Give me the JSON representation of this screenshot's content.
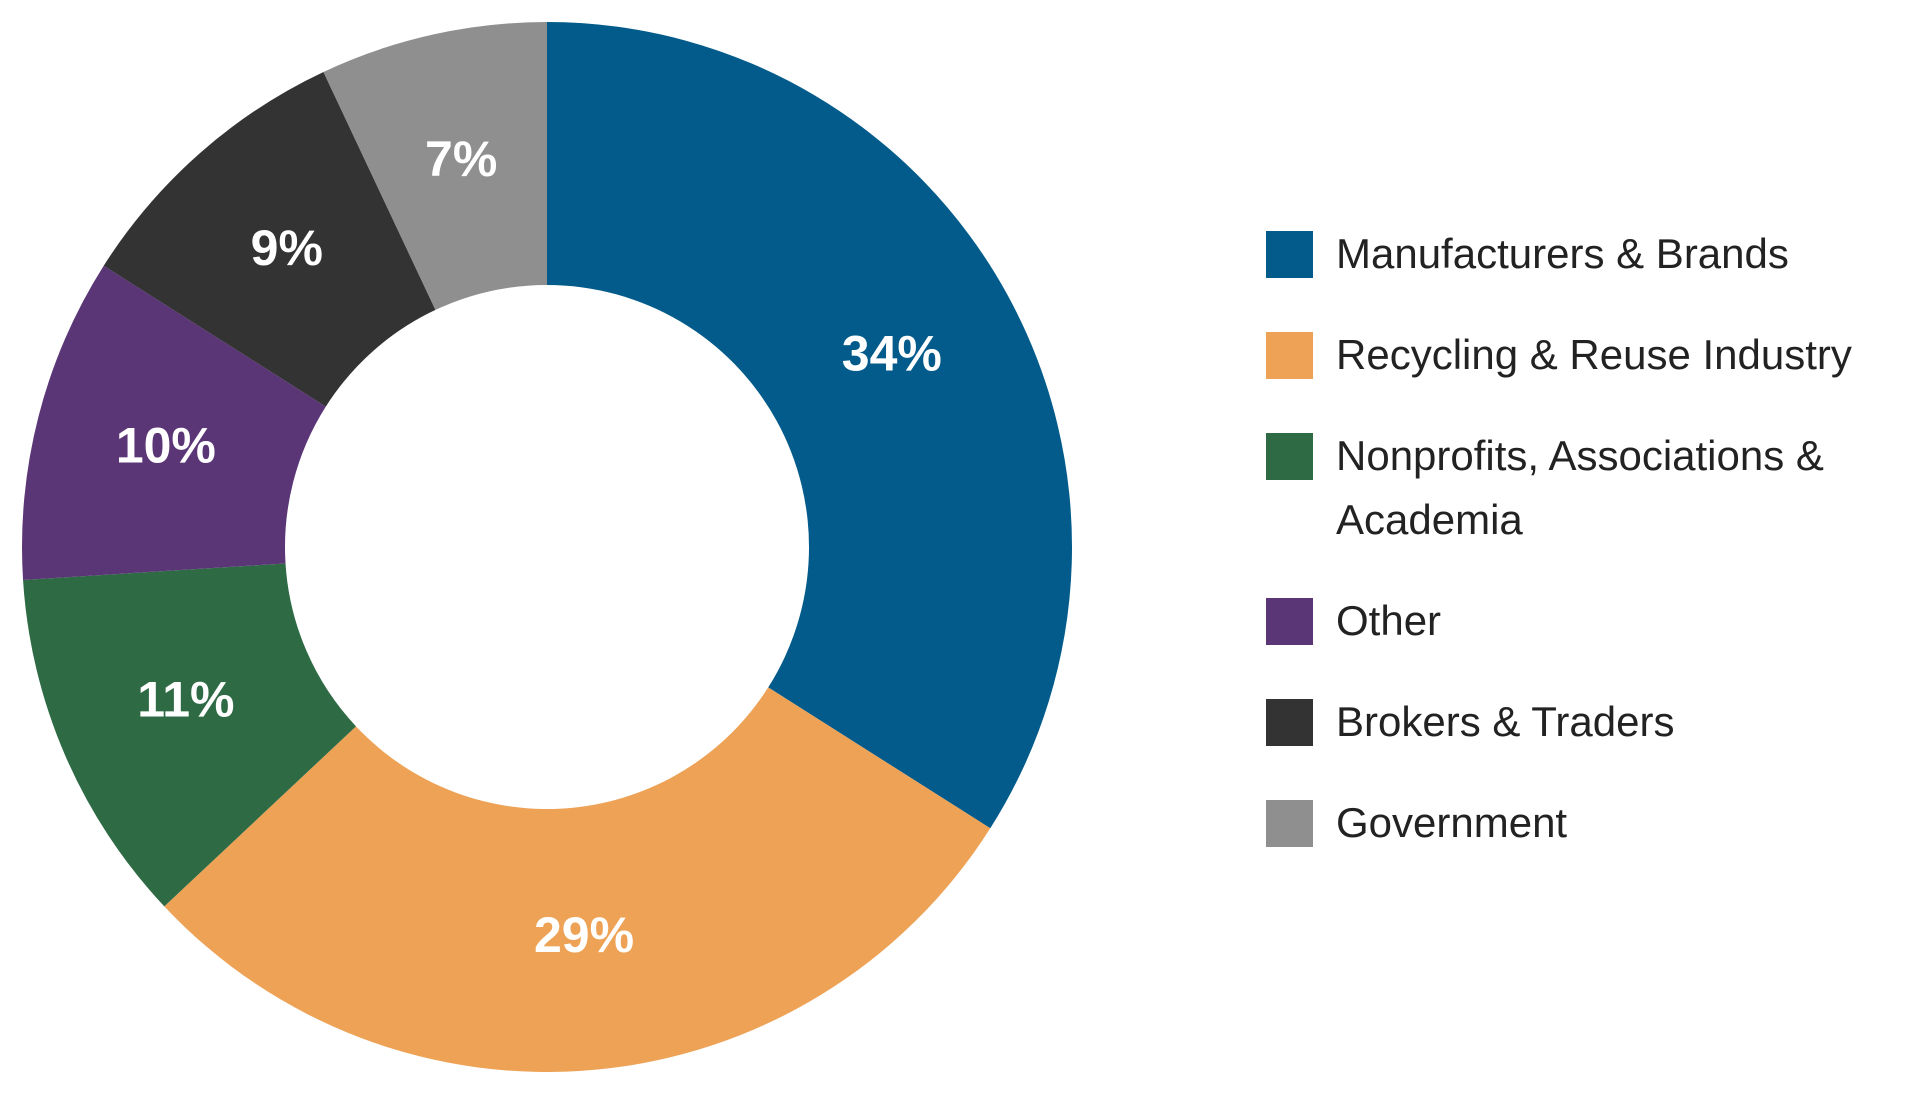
{
  "chart_data": {
    "type": "pie",
    "categories": [
      "Manufacturers & Brands",
      "Recycling & Reuse Industry",
      "Nonprofits, Associations & Academia",
      "Other",
      "Brokers & Traders",
      "Government"
    ],
    "values": [
      34,
      29,
      11,
      10,
      9,
      7
    ],
    "value_labels": [
      "34%",
      "29%",
      "11%",
      "10%",
      "9%",
      "7%"
    ],
    "colors": [
      "#025b8a",
      "#eda256",
      "#2e6b45",
      "#5b3677",
      "#333333",
      "#8f8f8f"
    ],
    "donut": true,
    "legend": "right"
  }
}
